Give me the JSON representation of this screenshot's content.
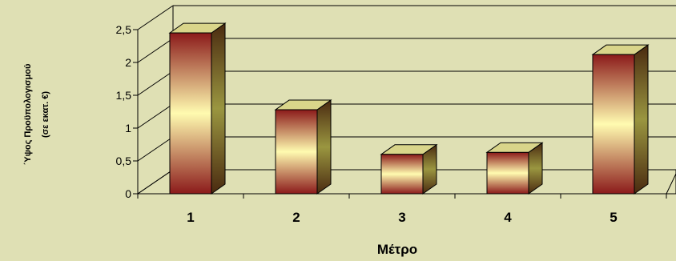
{
  "chart_data": {
    "type": "bar",
    "categories": [
      "1",
      "2",
      "3",
      "4",
      "5"
    ],
    "values": [
      2.45,
      1.28,
      0.6,
      0.63,
      2.12
    ],
    "xlabel": "Μέτρο",
    "ylabel_lines": [
      "΄Υψος Προϋπολογισμού",
      "(σε εκατ. €)"
    ],
    "ylim": [
      0,
      2.5
    ],
    "yticks": [
      "0",
      "0,5",
      "1",
      "1,5",
      "2",
      "2,5"
    ],
    "grid": true,
    "legend": "none"
  },
  "colors": {
    "background": "#dfe0b4",
    "bar_dark": "#8b1a1a",
    "bar_light": "#fffbb0",
    "bar_side": "#6b6a2a",
    "bar_top": "#d9d58a"
  }
}
